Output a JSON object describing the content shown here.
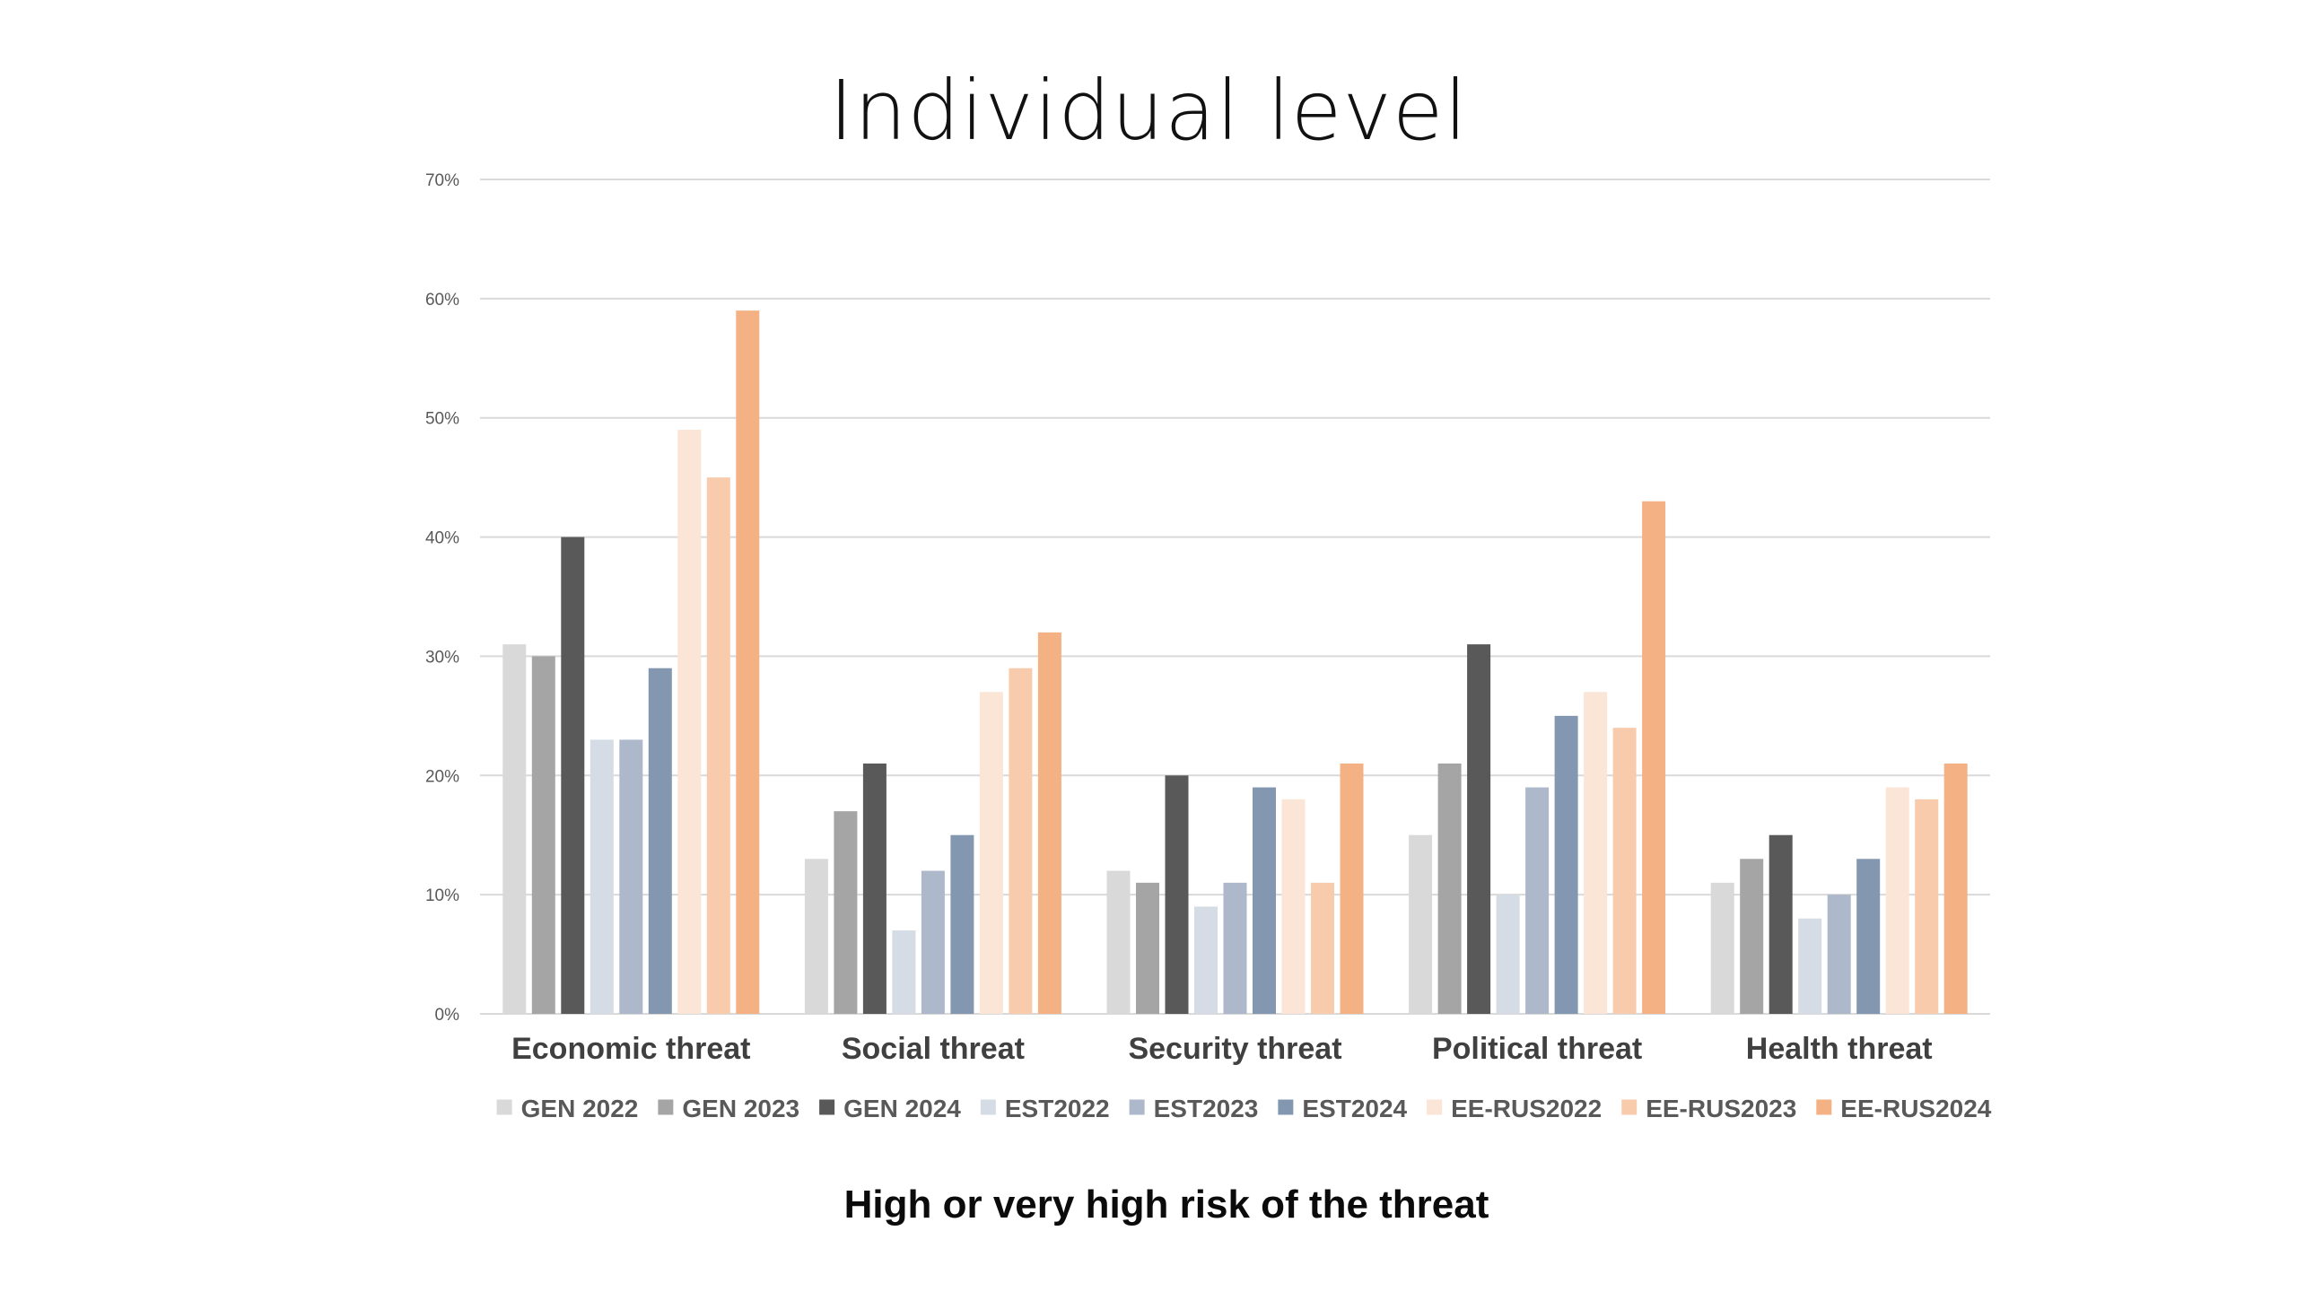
{
  "slide": {
    "title": "Individual level",
    "subtitle": "High or very high risk of the threat"
  },
  "chart_data": {
    "type": "bar",
    "title": "Individual level",
    "xlabel": "",
    "ylabel": "",
    "ylim": [
      0,
      0.7
    ],
    "y_ticks": [
      {
        "value": 0,
        "label": "0%"
      },
      {
        "value": 0.1,
        "label": "10%"
      },
      {
        "value": 0.2,
        "label": "20%"
      },
      {
        "value": 0.3,
        "label": "30%"
      },
      {
        "value": 0.4,
        "label": "40%"
      },
      {
        "value": 0.5,
        "label": "50%"
      },
      {
        "value": 0.6,
        "label": "60%"
      },
      {
        "value": 0.7,
        "label": "70%"
      }
    ],
    "grid": true,
    "legend_position": "bottom",
    "categories": [
      "Economic threat",
      "Social threat",
      "Security threat",
      "Political threat",
      "Health threat"
    ],
    "series": [
      {
        "name": "GEN 2022",
        "color": "#d9d9d9",
        "values": [
          0.31,
          0.13,
          0.12,
          0.15,
          0.11
        ]
      },
      {
        "name": "GEN 2023",
        "color": "#a5a5a5",
        "values": [
          0.3,
          0.17,
          0.11,
          0.21,
          0.13
        ]
      },
      {
        "name": "GEN 2024",
        "color": "#595959",
        "values": [
          0.4,
          0.21,
          0.2,
          0.31,
          0.15
        ]
      },
      {
        "name": "EST2022",
        "color": "#d6dce5",
        "values": [
          0.23,
          0.07,
          0.09,
          0.1,
          0.08
        ]
      },
      {
        "name": "EST2023",
        "color": "#adb9ca",
        "values": [
          0.23,
          0.12,
          0.11,
          0.19,
          0.1
        ]
      },
      {
        "name": "EST2024",
        "color": "#8497b0",
        "values": [
          0.29,
          0.15,
          0.19,
          0.25,
          0.13
        ]
      },
      {
        "name": "EE-RUS2022",
        "color": "#fbe5d6",
        "values": [
          0.49,
          0.27,
          0.18,
          0.27,
          0.19
        ]
      },
      {
        "name": "EE-RUS2023",
        "color": "#f8cbad",
        "values": [
          0.45,
          0.29,
          0.11,
          0.24,
          0.18
        ]
      },
      {
        "name": "EE-RUS2024",
        "color": "#f4b183",
        "values": [
          0.59,
          0.32,
          0.21,
          0.43,
          0.21
        ]
      }
    ]
  }
}
